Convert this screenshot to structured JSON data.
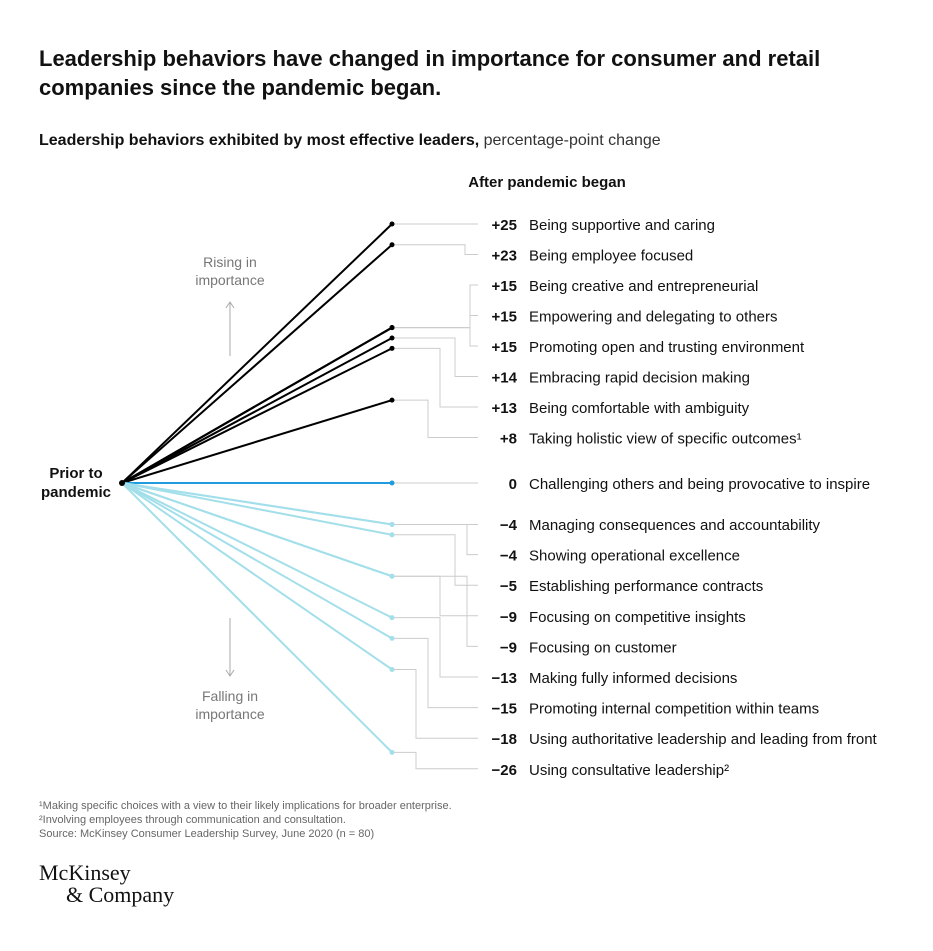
{
  "chart_data": {
    "type": "slope",
    "title": [
      "Leadership behaviors have changed in importance for consumer and retail",
      "companies since the pandemic began."
    ],
    "subtitle_bold": "Leadership behaviors exhibited by most effective leaders,",
    "subtitle": "percentage-point change",
    "end_label": "After pandemic began",
    "start_label": [
      "Prior to",
      "pandemic"
    ],
    "rising_label": [
      "Rising in",
      "importance"
    ],
    "falling_label": [
      "Falling in",
      "importance"
    ],
    "categories": [
      "Being supportive and caring",
      "Being employee focused",
      "Being creative and entrepreneurial",
      "Empowering and delegating to others",
      "Promoting open and trusting environment",
      "Embracing rapid decision making",
      "Being comfortable with ambiguity",
      "Taking holistic view of specific outcomes¹",
      "Challenging others and being provocative to inspire",
      "Managing consequences and accountability",
      "Showing operational excellence",
      "Establishing performance contracts",
      "Focusing on competitive insights",
      "Focusing on customer",
      "Making fully informed decisions",
      "Promoting internal competition within teams",
      "Using authoritative leadership and leading from front",
      "Using consultative leadership²"
    ],
    "values": [
      25,
      23,
      15,
      15,
      15,
      14,
      13,
      8,
      0,
      -4,
      -4,
      -5,
      -9,
      -9,
      -13,
      -15,
      -18,
      -26
    ],
    "value_labels": [
      "+25",
      "+23",
      "+15",
      "+15",
      "+15",
      "+14",
      "+13",
      "+8",
      "0",
      "−4",
      "−4",
      "−5",
      "−9",
      "−9",
      "−13",
      "−15",
      "−18",
      "−26"
    ],
    "colors": {
      "rising": "#000000",
      "unchanged": "#1f9bde",
      "falling": "#a3dfea"
    },
    "footnotes": [
      "¹Making specific choices with a view to their likely implications for broader enterprise.",
      "²Involving employees through communication and consultation.",
      " Source: McKinsey Consumer Leadership Survey, June 2020 (n = 80)"
    ],
    "logo": [
      "McKinsey",
      "& Company"
    ]
  }
}
